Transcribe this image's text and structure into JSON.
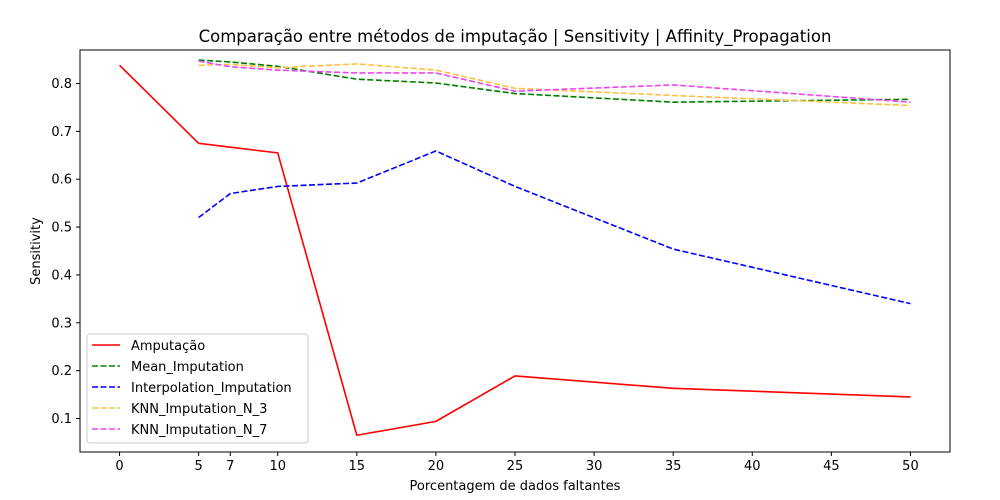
{
  "chart_data": {
    "type": "line",
    "title": "Comparação entre métodos de imputação | Sensitivity | Affinity_Propagation",
    "xlabel": "Porcentagem de dados faltantes",
    "ylabel": "Sensitivity",
    "xlim": [
      -2.5,
      52.5
    ],
    "ylim": [
      0.03,
      0.87
    ],
    "x_ticks": [
      0,
      5,
      7,
      10,
      15,
      20,
      25,
      30,
      35,
      40,
      45,
      50
    ],
    "y_ticks": [
      0.1,
      0.2,
      0.3,
      0.4,
      0.5,
      0.6,
      0.7,
      0.8
    ],
    "grid": false,
    "legend_position": "lower-left",
    "series": [
      {
        "name": "Amputação",
        "color": "#ff0000",
        "style": "solid",
        "x": [
          0,
          5,
          10,
          15,
          20,
          25,
          35,
          50
        ],
        "y": [
          0.838,
          0.675,
          0.655,
          0.065,
          0.094,
          0.189,
          0.163,
          0.145
        ]
      },
      {
        "name": "Mean_Imputation",
        "color": "#008000",
        "style": "dashed",
        "x": [
          5,
          7,
          10,
          15,
          20,
          25,
          35,
          50
        ],
        "y": [
          0.849,
          0.845,
          0.836,
          0.809,
          0.801,
          0.779,
          0.761,
          0.767
        ]
      },
      {
        "name": "Interpolation_Imputation",
        "color": "#0000ff",
        "style": "dashed",
        "x": [
          5,
          7,
          10,
          15,
          20,
          25,
          35,
          50
        ],
        "y": [
          0.52,
          0.57,
          0.585,
          0.592,
          0.659,
          0.585,
          0.454,
          0.34
        ]
      },
      {
        "name": "KNN_Imputation_N_3",
        "color": "#ffbf40",
        "style": "dashed",
        "x": [
          5,
          7,
          10,
          15,
          20,
          25,
          35,
          50
        ],
        "y": [
          0.838,
          0.84,
          0.833,
          0.841,
          0.828,
          0.79,
          0.775,
          0.754
        ]
      },
      {
        "name": "KNN_Imputation_N_7",
        "color": "#ee44ee",
        "style": "dashed",
        "x": [
          5,
          7,
          10,
          15,
          20,
          25,
          35,
          50
        ],
        "y": [
          0.847,
          0.835,
          0.828,
          0.822,
          0.822,
          0.784,
          0.797,
          0.761
        ]
      }
    ]
  }
}
